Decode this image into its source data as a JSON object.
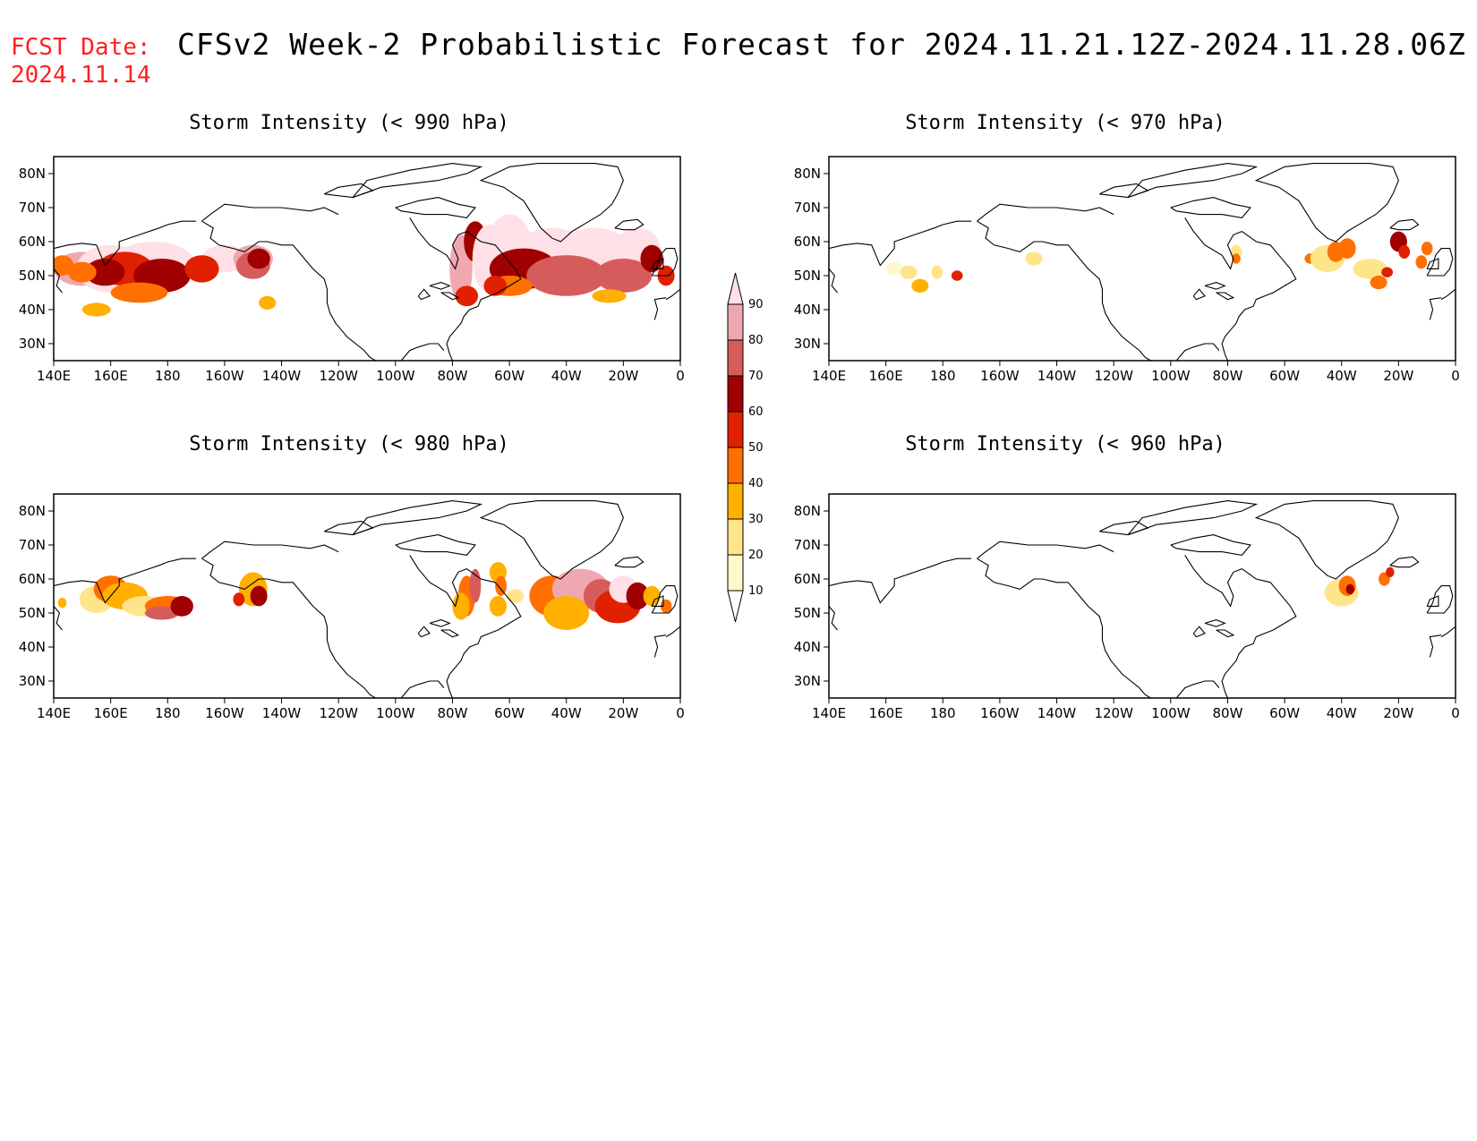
{
  "header": {
    "fcst_label": "FCST Date:",
    "fcst_date": "2024.11.14",
    "title": "CFSv2 Week-2 Probabilistic Forecast for 2024.11.21.12Z-2024.11.28.06Z"
  },
  "axes": {
    "lon_labels": [
      "140E",
      "160E",
      "180",
      "160W",
      "140W",
      "120W",
      "100W",
      "80W",
      "60W",
      "40W",
      "20W",
      "0"
    ],
    "lat_labels": [
      "80N",
      "70N",
      "60N",
      "50N",
      "40N",
      "30N"
    ]
  },
  "panels": [
    {
      "id": "p990",
      "title": "Storm Intensity (< 990 hPa)",
      "coverage": "widespread, peaks 60-90% over N Pacific and N Atlantic"
    },
    {
      "id": "p970",
      "title": "Storm Intensity (< 970 hPa)",
      "coverage": "scattered, mostly 10-40%, locally 60%"
    },
    {
      "id": "p980",
      "title": "Storm Intensity (< 980 hPa)",
      "coverage": "moderate, peaks 60-80%"
    },
    {
      "id": "p960",
      "title": "Storm Intensity (< 960 hPa)",
      "coverage": "isolated spots in N Atlantic"
    }
  ],
  "colorbar": {
    "levels": [
      "10",
      "20",
      "30",
      "40",
      "50",
      "60",
      "70",
      "80",
      "90"
    ],
    "colors": [
      "#fff8c8",
      "#ffe58a",
      "#ffb000",
      "#ff7000",
      "#e02000",
      "#a00000",
      "#d65c5c",
      "#f0a8b0",
      "#ffe0e6"
    ]
  }
}
